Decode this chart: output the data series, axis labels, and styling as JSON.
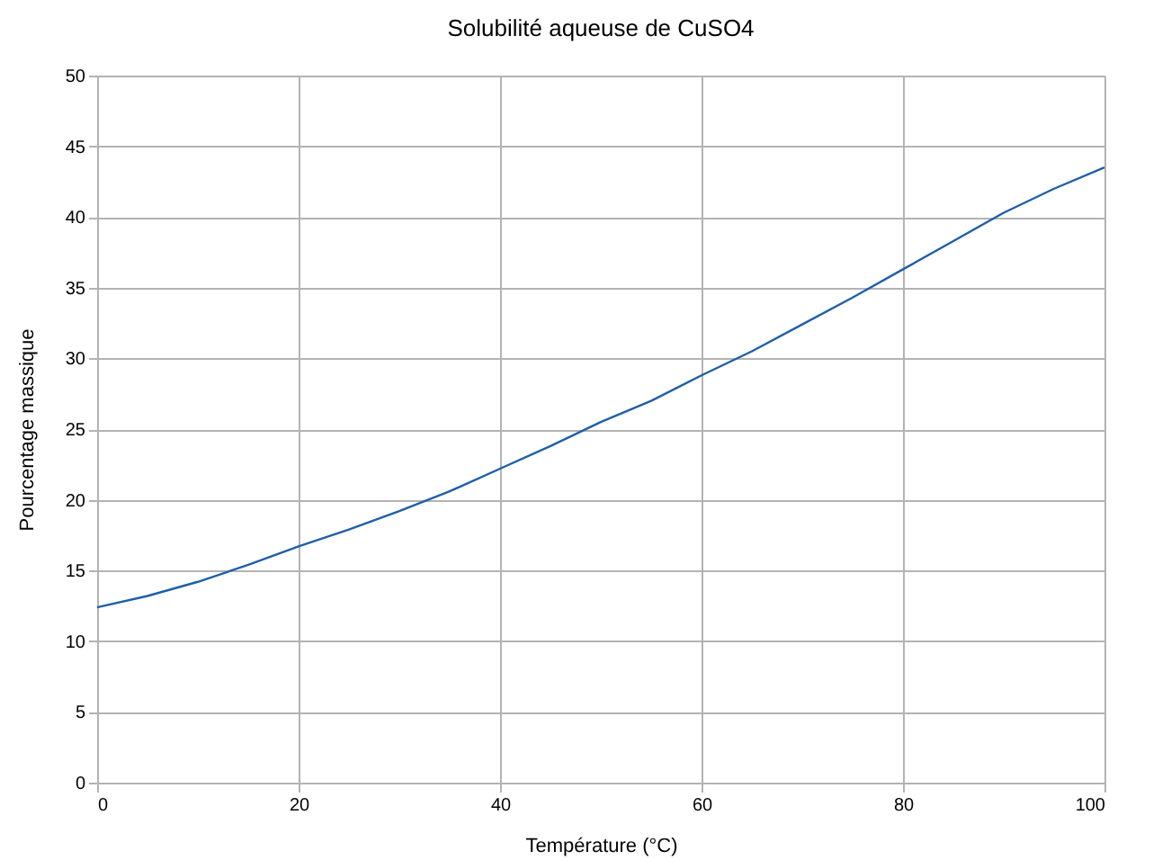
{
  "chart_data": {
    "type": "line",
    "title": "Solubilité aqueuse de CuSO4",
    "xlabel": "Température (°C)",
    "ylabel": "Pourcentage massique",
    "x": [
      0,
      5,
      10,
      15,
      20,
      25,
      30,
      35,
      40,
      45,
      50,
      55,
      60,
      65,
      70,
      75,
      80,
      85,
      90,
      95,
      100
    ],
    "series": [
      {
        "color": "#1f5fa8",
        "values": [
          12.4,
          13.2,
          14.2,
          15.4,
          16.7,
          17.9,
          19.2,
          20.6,
          22.2,
          23.8,
          25.5,
          27.0,
          28.8,
          30.5,
          32.4,
          34.3,
          36.3,
          38.3,
          40.3,
          42.0,
          43.5
        ]
      }
    ],
    "xlim": [
      0,
      100
    ],
    "xticks": [
      0,
      20,
      40,
      60,
      80,
      100
    ],
    "ylim": [
      0,
      50
    ],
    "yticks": [
      0,
      5,
      10,
      15,
      20,
      25,
      30,
      35,
      40,
      45,
      50
    ],
    "grid": true,
    "legend": false,
    "marker": "none",
    "line_style": "solid"
  }
}
